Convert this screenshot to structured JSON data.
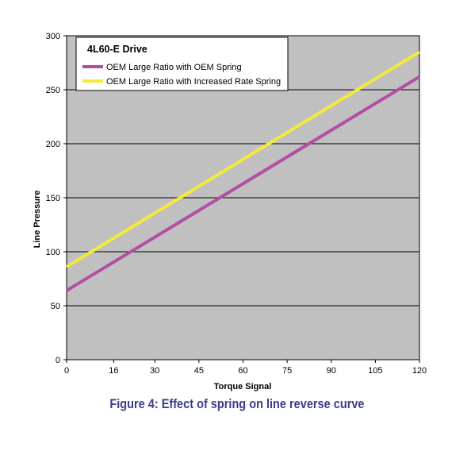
{
  "chart_data": {
    "type": "line",
    "title": "",
    "legend_title": "4L60-E Drive",
    "xlabel": "Torque Signal",
    "ylabel": "Line Pressure",
    "xlim": [
      0,
      120
    ],
    "ylim": [
      0,
      300
    ],
    "x_ticks": [
      "0",
      "16",
      "30",
      "45",
      "60",
      "75",
      "90",
      "105",
      "120"
    ],
    "y_ticks": [
      "0",
      "50",
      "100",
      "150",
      "200",
      "250",
      "300"
    ],
    "grid": "horizontal",
    "legend_position": "top-left",
    "plot_background": "#c0c0c0",
    "series": [
      {
        "name": "OEM Large Ratio with OEM Spring",
        "color": "#b24fa5",
        "x": [
          0,
          120
        ],
        "y": [
          64,
          262
        ]
      },
      {
        "name": "OEM Large Ratio with Increased Rate Spring",
        "color": "#f5e93a",
        "x": [
          0,
          120
        ],
        "y": [
          86,
          285
        ]
      }
    ]
  },
  "caption": "Figure 4: Effect of spring on line reverse curve"
}
